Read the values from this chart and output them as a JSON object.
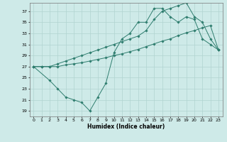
{
  "xlabel": "Humidex (Indice chaleur)",
  "bg_color": "#ceeae8",
  "grid_color": "#b0d4d0",
  "line_color": "#2e7d6e",
  "xlim": [
    -0.5,
    23.5
  ],
  "ylim": [
    18,
    38.5
  ],
  "xticks": [
    0,
    1,
    2,
    3,
    4,
    5,
    6,
    7,
    8,
    9,
    10,
    11,
    12,
    13,
    14,
    15,
    16,
    17,
    18,
    19,
    20,
    21,
    22,
    23
  ],
  "yticks": [
    19,
    21,
    23,
    25,
    27,
    29,
    31,
    33,
    35,
    37
  ],
  "line1_x": [
    0,
    1,
    2,
    3,
    4,
    5,
    6,
    7,
    8,
    9,
    10,
    11,
    12,
    13,
    14,
    15,
    16,
    17,
    18,
    19,
    20,
    21,
    22,
    23
  ],
  "line1_y": [
    27,
    27,
    27,
    27,
    27.3,
    27.5,
    27.7,
    28.0,
    28.3,
    28.6,
    29.0,
    29.3,
    29.7,
    30.1,
    30.6,
    31.1,
    31.6,
    32.0,
    32.6,
    33.1,
    33.5,
    34.0,
    34.4,
    30.0
  ],
  "line2_x": [
    0,
    2,
    3,
    4,
    5,
    6,
    7,
    8,
    9,
    10,
    11,
    12,
    13,
    14,
    15,
    16,
    17,
    18,
    19,
    20,
    21,
    22,
    23
  ],
  "line2_y": [
    27,
    24.5,
    23,
    21.5,
    21,
    20.5,
    19,
    21.5,
    24,
    29.5,
    32,
    33,
    35,
    35,
    37.5,
    37.5,
    36,
    35,
    36,
    35.5,
    32,
    31,
    30
  ],
  "line3_x": [
    0,
    1,
    2,
    3,
    4,
    5,
    6,
    7,
    8,
    9,
    10,
    11,
    12,
    13,
    14,
    15,
    16,
    17,
    18,
    19,
    20,
    21,
    22,
    23
  ],
  "line3_y": [
    27,
    27,
    27,
    27.5,
    28.0,
    28.5,
    29.0,
    29.5,
    30.0,
    30.5,
    31.0,
    31.5,
    32.0,
    32.5,
    33.5,
    35.5,
    37.0,
    37.5,
    38.0,
    38.5,
    36.0,
    35.0,
    32.0,
    30.0
  ]
}
